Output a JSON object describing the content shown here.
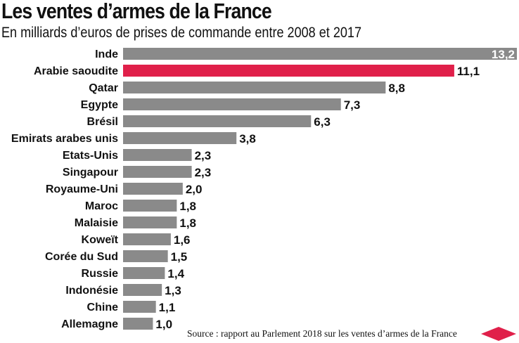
{
  "title": "Les ventes d’armes de la France",
  "subtitle": "En milliards d’euros de prises de commande entre 2008 et 2017",
  "source": "Source : rapport au Parlement 2018 sur les ventes d’armes de la France",
  "colors": {
    "bar": "#8a8a8a",
    "highlight": "#e0204a",
    "text": "#111111"
  },
  "chart_data": {
    "type": "bar",
    "orientation": "horizontal",
    "categories": [
      "Inde",
      "Arabie saoudite",
      "Qatar",
      "Egypte",
      "Brésil",
      "Emirats arabes unis",
      "Etats-Unis",
      "Singapour",
      "Royaume-Uni",
      "Maroc",
      "Malaisie",
      "Koweït",
      "Corée du Sud",
      "Russie",
      "Indonésie",
      "Chine",
      "Allemagne"
    ],
    "values": [
      13.2,
      11.1,
      8.8,
      7.3,
      6.3,
      3.8,
      2.3,
      2.3,
      2.0,
      1.8,
      1.8,
      1.6,
      1.5,
      1.4,
      1.3,
      1.1,
      1.0
    ],
    "value_labels": [
      "13,2",
      "11,1",
      "8,8",
      "7,3",
      "6,3",
      "3,8",
      "2,3",
      "2,3",
      "2,0",
      "1,8",
      "1,8",
      "1,6",
      "1,5",
      "1,4",
      "1,3",
      "1,1",
      "1,0"
    ],
    "highlight": "Arabie saoudite",
    "xlim": [
      0,
      13.2
    ],
    "grid": false,
    "legend": "none"
  }
}
